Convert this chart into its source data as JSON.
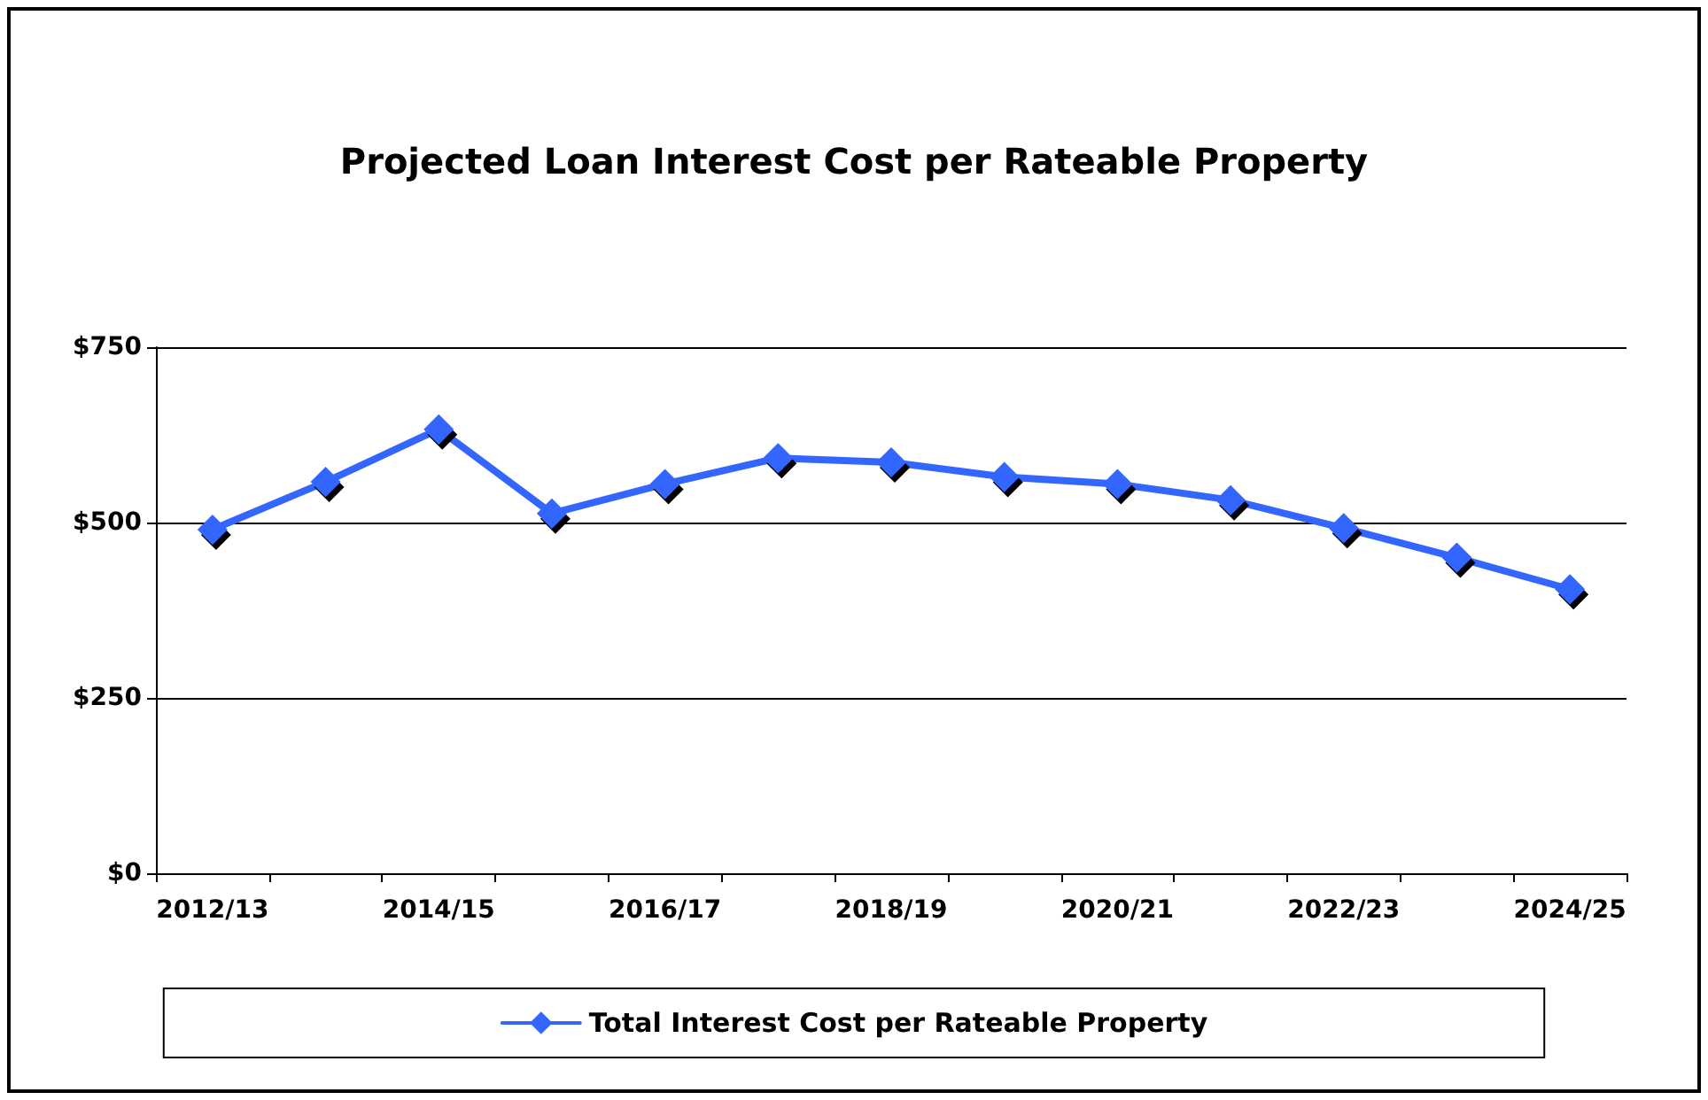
{
  "chart_data": {
    "type": "line",
    "title": "Projected Loan Interest Cost per Rateable Property",
    "categories": [
      "2012/13",
      null,
      "2014/15",
      null,
      "2016/17",
      null,
      "2018/19",
      null,
      "2020/21",
      null,
      "2022/23",
      null,
      "2024/25"
    ],
    "series": [
      {
        "name": "Total Interest Cost per Rateable Property",
        "color": "#3366ff",
        "values": [
          490,
          558,
          633,
          513,
          555,
          592,
          586,
          565,
          555,
          532,
          492,
          450,
          405
        ]
      }
    ],
    "ylim": [
      0,
      750
    ],
    "yticks": [
      {
        "value": 0,
        "label": "$0"
      },
      {
        "value": 250,
        "label": "$250"
      },
      {
        "value": 500,
        "label": "$500"
      },
      {
        "value": 750,
        "label": "$750"
      }
    ],
    "grid": "y",
    "legend": "bottom",
    "marker": "diamond",
    "line_style": "solid"
  }
}
